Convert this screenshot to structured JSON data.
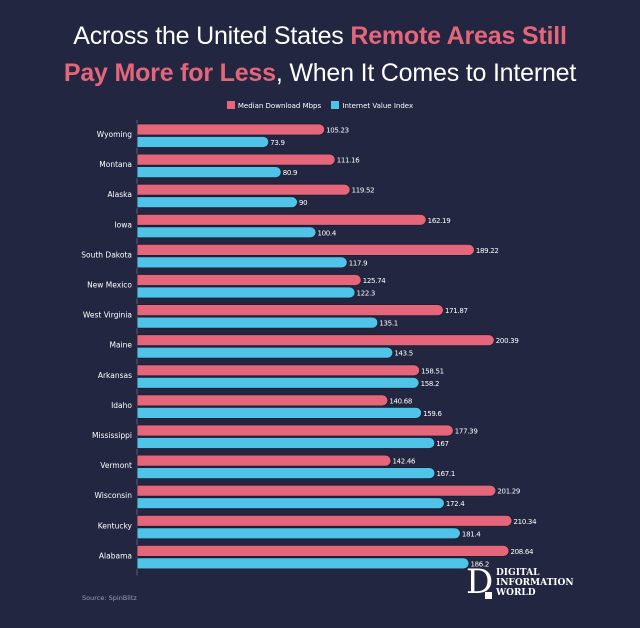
{
  "title": {
    "line1_plain": "Across the United States ",
    "line1_highlight": "Remote Areas Still",
    "line2_highlight": "Pay More for Less",
    "line2_plain": ", When It Comes to Internet"
  },
  "colors": {
    "background": "#222640",
    "download": "#e5667a",
    "value_index": "#4fc3e8",
    "text": "#ffffff"
  },
  "source": "Source: SpinBlitz",
  "logo": {
    "letter": "D",
    "lines": [
      "DIGITAL",
      "INFORMATION",
      "WORLD"
    ]
  },
  "chart_data": {
    "type": "bar",
    "orientation": "horizontal",
    "title": "Across the United States Remote Areas Still Pay More for Less, When It Comes to Internet",
    "xlabel": "",
    "ylabel": "",
    "legend_position": "top-center",
    "grid": false,
    "xlim": [
      0,
      215
    ],
    "categories": [
      "Wyoming",
      "Montana",
      "Alaska",
      "Iowa",
      "South Dakota",
      "New Mexico",
      "West Virginia",
      "Maine",
      "Arkansas",
      "Idaho",
      "Mississippi",
      "Vermont",
      "Wisconsin",
      "Kentucky",
      "Alabama"
    ],
    "series": [
      {
        "name": "Median Download Mbps",
        "color": "#e5667a",
        "values": [
          105.23,
          111.16,
          119.52,
          162.19,
          189.22,
          125.74,
          171.87,
          200.39,
          158.51,
          140.68,
          177.39,
          142.46,
          201.29,
          210.34,
          208.64
        ],
        "labels": [
          "105.23",
          "111.16",
          "119.52",
          "162.19",
          "189.22",
          "125.74",
          "171.87",
          "200.39",
          "158.51",
          "140.68",
          "177.39",
          "142.46",
          "201.29",
          "210.34",
          "208.64"
        ]
      },
      {
        "name": "Internet Value Index",
        "color": "#4fc3e8",
        "values": [
          73.9,
          80.9,
          90,
          100.4,
          117.9,
          122.3,
          135.1,
          143.5,
          158.2,
          159.6,
          167,
          167.1,
          172.4,
          181.4,
          186.2
        ],
        "labels": [
          "73.9",
          "80.9",
          "90",
          "100.4",
          "117.9",
          "122.3",
          "135.1",
          "143.5",
          "158.2",
          "159.6",
          "167",
          "167.1",
          "172.4",
          "181.4",
          "186.2"
        ]
      }
    ]
  }
}
